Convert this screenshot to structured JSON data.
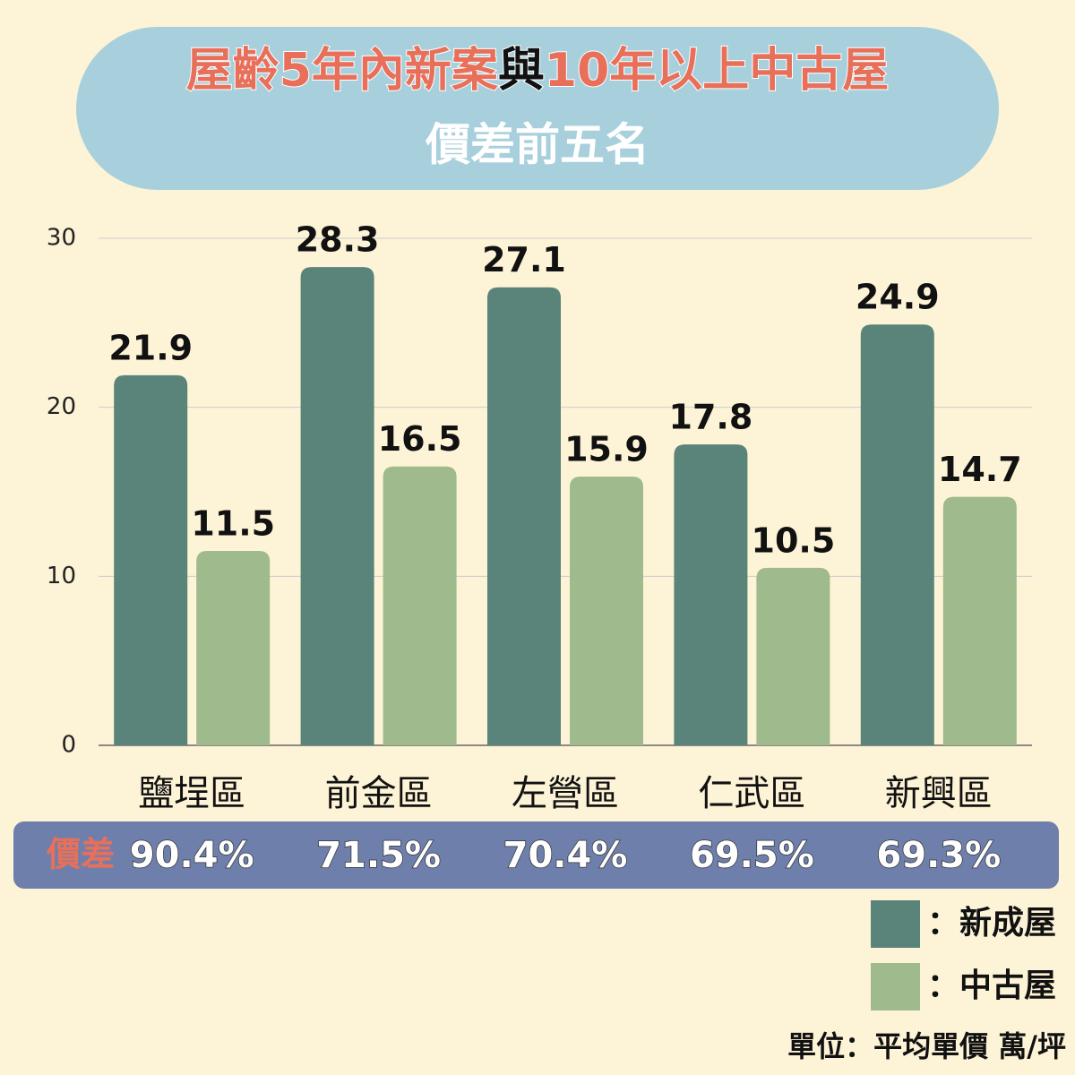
{
  "chart_data": {
    "type": "bar",
    "title": [
      "屋齡5年內新案",
      "與",
      "10年以上中古屋"
    ],
    "subtitle": "價差前五名",
    "categories": [
      "鹽埕區",
      "前金區",
      "左營區",
      "仁武區",
      "新興區"
    ],
    "series": [
      {
        "name": "新成屋",
        "color": "#5a837a",
        "values": [
          21.9,
          28.3,
          27.1,
          17.8,
          24.9
        ]
      },
      {
        "name": "中古屋",
        "color": "#9fba8c",
        "values": [
          11.5,
          16.5,
          15.9,
          10.5,
          14.7
        ]
      }
    ],
    "ylim": [
      0,
      30
    ],
    "yticks": [
      0,
      10,
      20,
      30
    ],
    "grid": true,
    "price_diff_label": "價差",
    "price_diff": [
      "90.4%",
      "71.5%",
      "70.4%",
      "69.5%",
      "69.3%"
    ],
    "legend_prefix": "：",
    "unit_note": "單位：平均單價 萬/坪"
  }
}
